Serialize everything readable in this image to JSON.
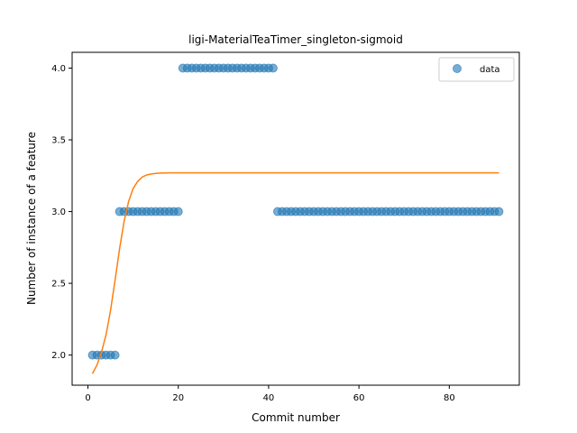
{
  "chart_data": {
    "type": "scatter",
    "title": "ligi-MaterialTeaTimer_singleton-sigmoid",
    "xlabel": "Commit number",
    "ylabel": "Number of instance of a feature",
    "xlim": [
      -3.5,
      95.5
    ],
    "ylim": [
      1.79,
      4.11
    ],
    "xticks": [
      0,
      20,
      40,
      60,
      80
    ],
    "xtick_labels": [
      "0",
      "20",
      "40",
      "60",
      "80"
    ],
    "yticks": [
      2.0,
      2.5,
      3.0,
      3.5,
      4.0
    ],
    "ytick_labels": [
      "2.0",
      "2.5",
      "3.0",
      "3.5",
      "4.0"
    ],
    "grid": false,
    "legend": {
      "placement": "top-right",
      "entries": [
        "data"
      ]
    },
    "colors": {
      "data": "#1f77b4",
      "fit": "#ff7f0e"
    },
    "series": [
      {
        "name": "data",
        "kind": "scatter",
        "points": [
          [
            1,
            2
          ],
          [
            2,
            2
          ],
          [
            3,
            2
          ],
          [
            4,
            2
          ],
          [
            5,
            2
          ],
          [
            6,
            2
          ],
          [
            7,
            3
          ],
          [
            8,
            3
          ],
          [
            9,
            3
          ],
          [
            10,
            3
          ],
          [
            11,
            3
          ],
          [
            12,
            3
          ],
          [
            13,
            3
          ],
          [
            14,
            3
          ],
          [
            15,
            3
          ],
          [
            16,
            3
          ],
          [
            17,
            3
          ],
          [
            18,
            3
          ],
          [
            19,
            3
          ],
          [
            20,
            3
          ],
          [
            21,
            4
          ],
          [
            22,
            4
          ],
          [
            23,
            4
          ],
          [
            24,
            4
          ],
          [
            25,
            4
          ],
          [
            26,
            4
          ],
          [
            27,
            4
          ],
          [
            28,
            4
          ],
          [
            29,
            4
          ],
          [
            30,
            4
          ],
          [
            31,
            4
          ],
          [
            32,
            4
          ],
          [
            33,
            4
          ],
          [
            34,
            4
          ],
          [
            35,
            4
          ],
          [
            36,
            4
          ],
          [
            37,
            4
          ],
          [
            38,
            4
          ],
          [
            39,
            4
          ],
          [
            40,
            4
          ],
          [
            41,
            4
          ],
          [
            42,
            3
          ],
          [
            43,
            3
          ],
          [
            44,
            3
          ],
          [
            45,
            3
          ],
          [
            46,
            3
          ],
          [
            47,
            3
          ],
          [
            48,
            3
          ],
          [
            49,
            3
          ],
          [
            50,
            3
          ],
          [
            51,
            3
          ],
          [
            52,
            3
          ],
          [
            53,
            3
          ],
          [
            54,
            3
          ],
          [
            55,
            3
          ],
          [
            56,
            3
          ],
          [
            57,
            3
          ],
          [
            58,
            3
          ],
          [
            59,
            3
          ],
          [
            60,
            3
          ],
          [
            61,
            3
          ],
          [
            62,
            3
          ],
          [
            63,
            3
          ],
          [
            64,
            3
          ],
          [
            65,
            3
          ],
          [
            66,
            3
          ],
          [
            67,
            3
          ],
          [
            68,
            3
          ],
          [
            69,
            3
          ],
          [
            70,
            3
          ],
          [
            71,
            3
          ],
          [
            72,
            3
          ],
          [
            73,
            3
          ],
          [
            74,
            3
          ],
          [
            75,
            3
          ],
          [
            76,
            3
          ],
          [
            77,
            3
          ],
          [
            78,
            3
          ],
          [
            79,
            3
          ],
          [
            80,
            3
          ],
          [
            81,
            3
          ],
          [
            82,
            3
          ],
          [
            83,
            3
          ],
          [
            84,
            3
          ],
          [
            85,
            3
          ],
          [
            86,
            3
          ],
          [
            87,
            3
          ],
          [
            88,
            3
          ],
          [
            89,
            3
          ],
          [
            90,
            3
          ],
          [
            91,
            3
          ]
        ]
      },
      {
        "kind": "line",
        "points": [
          [
            1,
            1.87
          ],
          [
            2,
            1.93
          ],
          [
            3,
            2.02
          ],
          [
            4,
            2.14
          ],
          [
            5,
            2.31
          ],
          [
            6,
            2.52
          ],
          [
            7,
            2.74
          ],
          [
            8,
            2.93
          ],
          [
            9,
            3.07
          ],
          [
            10,
            3.16
          ],
          [
            11,
            3.21
          ],
          [
            12,
            3.24
          ],
          [
            13,
            3.255
          ],
          [
            14,
            3.262
          ],
          [
            15,
            3.266
          ],
          [
            16,
            3.268
          ],
          [
            17,
            3.269
          ],
          [
            18,
            3.27
          ],
          [
            20,
            3.27
          ],
          [
            30,
            3.27
          ],
          [
            40,
            3.27
          ],
          [
            50,
            3.27
          ],
          [
            60,
            3.27
          ],
          [
            70,
            3.27
          ],
          [
            80,
            3.27
          ],
          [
            91,
            3.27
          ]
        ]
      }
    ]
  }
}
